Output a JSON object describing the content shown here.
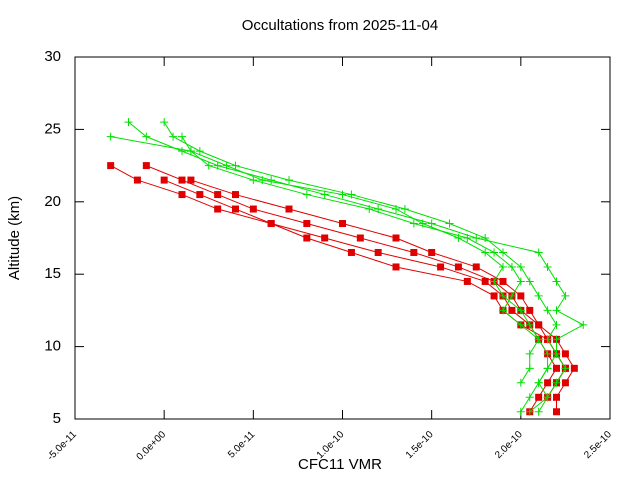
{
  "chart_data": {
    "type": "line",
    "title": "Occultations from 2025-11-04",
    "x_label": "CFC11 VMR",
    "y_label": "Altitude (km)",
    "xlim": [
      -5e-11,
      2.5e-10
    ],
    "xticks": [
      {
        "value": -5e-11,
        "label": "-5.0e-11"
      },
      {
        "value": 0,
        "label": "0.0e+00"
      },
      {
        "value": 5e-11,
        "label": "5.0e-11"
      },
      {
        "value": 1e-10,
        "label": "1.0e-10"
      },
      {
        "value": 1.5e-10,
        "label": "1.5e-10"
      },
      {
        "value": 2e-10,
        "label": "2.0e-10"
      },
      {
        "value": 2.5e-10,
        "label": "2.5e-10"
      }
    ],
    "ylim": [
      5,
      30
    ],
    "yticks": [
      5,
      10,
      15,
      20,
      25,
      30
    ],
    "series": [
      {
        "color": "#e00000",
        "marker": "square",
        "x": [
          -3e-11,
          -1.5e-11,
          1e-11,
          3e-11,
          6e-11,
          9e-11,
          1.2e-10,
          1.55e-10,
          1.8e-10,
          1.9e-10,
          1.95e-10,
          2.05e-10,
          2.1e-10,
          2.15e-10,
          2.2e-10,
          2.15e-10,
          2.1e-10,
          2.05e-10
        ],
        "values": [
          22.5,
          21.5,
          20.5,
          19.5,
          18.5,
          17.5,
          16.5,
          15.5,
          14.5,
          13.5,
          12.5,
          11.5,
          10.5,
          9.5,
          8.5,
          7.5,
          6.5,
          5.5
        ]
      },
      {
        "color": "#e00000",
        "marker": "square",
        "x": [
          -1e-11,
          1e-11,
          3e-11,
          5e-11,
          8e-11,
          1.1e-10,
          1.4e-10,
          1.65e-10,
          1.85e-10,
          1.95e-10,
          2e-10,
          2.1e-10,
          2.2e-10,
          2.25e-10,
          2.3e-10,
          2.25e-10,
          2.2e-10,
          2.2e-10
        ],
        "values": [
          22.5,
          21.5,
          20.5,
          19.5,
          18.5,
          17.5,
          16.5,
          15.5,
          14.5,
          13.5,
          12.5,
          11.5,
          10.5,
          9.5,
          8.5,
          7.5,
          6.5,
          5.5
        ]
      },
      {
        "color": "#e00000",
        "marker": "square",
        "x": [
          1.5e-11,
          4e-11,
          7e-11,
          1e-10,
          1.3e-10,
          1.5e-10,
          1.75e-10,
          1.9e-10,
          2e-10,
          2.05e-10,
          2.1e-10,
          2.15e-10,
          2.2e-10,
          2.25e-10,
          2.2e-10,
          2.15e-10
        ],
        "values": [
          21.5,
          20.5,
          19.5,
          18.5,
          17.5,
          16.5,
          15.5,
          14.5,
          13.5,
          12.5,
          11.5,
          10.5,
          9.5,
          8.5,
          7.5,
          6.5
        ]
      },
      {
        "color": "#e00000",
        "marker": "square",
        "x": [
          0,
          2e-11,
          4e-11,
          6e-11,
          8e-11,
          1.05e-10,
          1.3e-10,
          1.7e-10,
          1.85e-10,
          1.9e-10,
          2e-10,
          2.15e-10,
          2.2e-10,
          2.25e-10,
          2.2e-10
        ],
        "values": [
          21.5,
          20.5,
          19.5,
          18.5,
          17.5,
          16.5,
          15.5,
          14.5,
          13.5,
          12.5,
          11.5,
          10.5,
          9.5,
          8.5,
          7.5
        ]
      },
      {
        "color": "#00e000",
        "marker": "plus",
        "x": [
          -2e-11,
          -1e-11,
          1e-11,
          3e-11,
          6e-11,
          9e-11,
          1.2e-10,
          1.5e-10,
          1.75e-10,
          2.1e-10,
          2.15e-10,
          2.2e-10,
          2.25e-10,
          2.2e-10,
          2.35e-10,
          2.2e-10,
          2.2e-10,
          2.15e-10,
          2.1e-10,
          2.05e-10,
          2e-10
        ],
        "values": [
          25.5,
          24.5,
          23.5,
          22.5,
          21.5,
          20.5,
          19.5,
          18.5,
          17.5,
          16.5,
          15.5,
          14.5,
          13.5,
          12.5,
          11.5,
          10.5,
          9.5,
          8.5,
          7.5,
          6.5,
          5.5
        ]
      },
      {
        "color": "#00e000",
        "marker": "plus",
        "x": [
          0,
          5e-12,
          2e-11,
          4e-11,
          7e-11,
          1.05e-10,
          1.35e-10,
          1.6e-10,
          1.8e-10,
          1.9e-10,
          2e-10,
          2.05e-10,
          2.1e-10,
          2.15e-10,
          2.2e-10,
          2.15e-10,
          2.2e-10,
          2.25e-10,
          2.2e-10,
          2.15e-10,
          2.1e-10
        ],
        "values": [
          25.5,
          24.5,
          23.5,
          22.5,
          21.5,
          20.5,
          19.5,
          18.5,
          17.5,
          16.5,
          15.5,
          14.5,
          13.5,
          12.5,
          11.5,
          10.5,
          9.5,
          8.5,
          7.5,
          6.5,
          5.5
        ]
      },
      {
        "color": "#00e000",
        "marker": "plus",
        "x": [
          -3e-11,
          1.5e-11,
          2.5e-11,
          5e-11,
          8e-11,
          1.15e-10,
          1.4e-10,
          1.7e-10,
          1.85e-10,
          1.95e-10,
          2e-10,
          1.95e-10,
          1.9e-10,
          2e-10,
          2.1e-10,
          2.05e-10,
          2.05e-10,
          2e-10
        ],
        "values": [
          24.5,
          23.5,
          22.5,
          21.5,
          20.5,
          19.5,
          18.5,
          17.5,
          16.5,
          15.5,
          14.5,
          13.5,
          12.5,
          11.5,
          10.5,
          9.5,
          8.5,
          7.5
        ]
      },
      {
        "color": "#00e000",
        "marker": "plus",
        "x": [
          1e-11,
          1.5e-11,
          3.5e-11,
          5.5e-11,
          1e-10,
          1.3e-10,
          1.45e-10,
          1.65e-10,
          1.8e-10,
          1.9e-10,
          1.85e-10,
          1.9e-10,
          2e-10,
          2.05e-10,
          2.1e-10,
          2.15e-10,
          2.15e-10,
          2.1e-10,
          2.15e-10,
          2.05e-10
        ],
        "values": [
          24.5,
          23.5,
          22.5,
          21.5,
          20.5,
          19.5,
          18.5,
          17.5,
          16.5,
          15.5,
          14.5,
          13.5,
          12.5,
          11.5,
          10.5,
          9.5,
          8.5,
          7.5,
          6.5,
          5.5
        ]
      }
    ]
  }
}
